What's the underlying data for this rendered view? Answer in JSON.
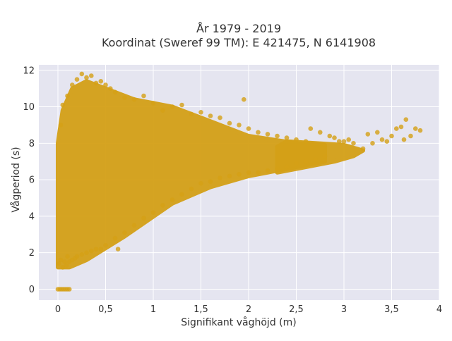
{
  "chart_data": {
    "type": "scatter",
    "title": "År 1979 - 2019",
    "subtitle": "Koordinat (Sweref 99 TM): E 421475, N 6141908",
    "xlabel": "Signifikant våghöjd (m)",
    "ylabel": "Vågperiod (s)",
    "xlim": [
      -0.2,
      4
    ],
    "ylim": [
      -0.6,
      12.3
    ],
    "x_ticks": [
      0,
      0.5,
      1,
      1.5,
      2,
      2.5,
      3,
      3.5,
      4
    ],
    "x_tick_labels": [
      "0",
      "0,5",
      "1",
      "1,5",
      "2",
      "2,5",
      "3",
      "3,5",
      "4"
    ],
    "y_ticks": [
      0,
      2,
      4,
      6,
      8,
      10,
      12
    ],
    "y_tick_labels": [
      "0",
      "2",
      "4",
      "6",
      "8",
      "10",
      "12"
    ],
    "grid": true,
    "marker_color": "#D4A017",
    "plot_background": "#E5E5F0",
    "series": [
      {
        "points": [
          [
            0.0,
            0.0
          ],
          [
            0.02,
            0.0
          ],
          [
            0.04,
            0.0
          ],
          [
            0.06,
            0.0
          ],
          [
            0.08,
            0.0
          ],
          [
            0.1,
            0.0
          ],
          [
            0.12,
            0.0
          ],
          [
            0.01,
            1.4
          ],
          [
            0.03,
            1.6
          ],
          [
            0.05,
            1.2
          ],
          [
            0.07,
            1.5
          ],
          [
            0.09,
            1.3
          ],
          [
            0.1,
            1.8
          ],
          [
            0.12,
            1.5
          ],
          [
            0.15,
            1.6
          ],
          [
            0.18,
            1.7
          ],
          [
            0.2,
            1.8
          ],
          [
            0.25,
            1.9
          ],
          [
            0.3,
            2.0
          ],
          [
            0.35,
            2.1
          ],
          [
            0.4,
            2.2
          ],
          [
            0.45,
            2.2
          ],
          [
            0.5,
            2.4
          ],
          [
            0.6,
            2.8
          ],
          [
            0.63,
            2.2
          ],
          [
            0.7,
            3.1
          ],
          [
            0.8,
            3.5
          ],
          [
            0.9,
            3.9
          ],
          [
            1.0,
            4.2
          ],
          [
            1.1,
            4.6
          ],
          [
            1.2,
            4.9
          ],
          [
            1.3,
            5.2
          ],
          [
            1.4,
            5.5
          ],
          [
            1.5,
            5.8
          ],
          [
            1.6,
            5.9
          ],
          [
            1.7,
            6.1
          ],
          [
            1.8,
            6.2
          ],
          [
            1.9,
            6.3
          ],
          [
            2.0,
            6.4
          ],
          [
            2.1,
            6.4
          ],
          [
            2.2,
            6.5
          ],
          [
            2.3,
            6.6
          ],
          [
            2.4,
            6.7
          ],
          [
            2.5,
            6.9
          ],
          [
            2.6,
            7.0
          ],
          [
            2.7,
            7.1
          ],
          [
            2.8,
            7.3
          ],
          [
            0.03,
            9.0
          ],
          [
            0.05,
            10.1
          ],
          [
            0.1,
            10.6
          ],
          [
            0.15,
            11.2
          ],
          [
            0.2,
            11.5
          ],
          [
            0.25,
            11.8
          ],
          [
            0.3,
            11.6
          ],
          [
            0.35,
            11.7
          ],
          [
            0.4,
            11.3
          ],
          [
            0.45,
            11.4
          ],
          [
            0.5,
            11.2
          ],
          [
            0.55,
            11.0
          ],
          [
            0.6,
            10.8
          ],
          [
            0.7,
            10.5
          ],
          [
            0.8,
            10.4
          ],
          [
            0.9,
            10.6
          ],
          [
            1.0,
            10.2
          ],
          [
            1.1,
            9.8
          ],
          [
            1.2,
            10.0
          ],
          [
            1.3,
            10.1
          ],
          [
            1.4,
            9.6
          ],
          [
            1.5,
            9.7
          ],
          [
            1.6,
            9.5
          ],
          [
            1.7,
            9.4
          ],
          [
            1.8,
            9.1
          ],
          [
            1.9,
            9.0
          ],
          [
            1.95,
            10.4
          ],
          [
            2.0,
            8.8
          ],
          [
            2.1,
            8.6
          ],
          [
            2.2,
            8.5
          ],
          [
            2.3,
            8.4
          ],
          [
            2.4,
            8.3
          ],
          [
            2.5,
            8.2
          ],
          [
            2.6,
            8.1
          ],
          [
            2.65,
            8.8
          ],
          [
            2.75,
            8.6
          ],
          [
            2.85,
            8.4
          ],
          [
            2.9,
            8.3
          ],
          [
            2.95,
            8.1
          ],
          [
            3.0,
            8.1
          ],
          [
            3.05,
            8.2
          ],
          [
            3.1,
            8.0
          ],
          [
            3.2,
            7.7
          ],
          [
            3.25,
            8.5
          ],
          [
            3.3,
            8.0
          ],
          [
            3.35,
            8.6
          ],
          [
            3.4,
            8.2
          ],
          [
            3.45,
            8.1
          ],
          [
            3.5,
            8.4
          ],
          [
            3.55,
            8.8
          ],
          [
            3.6,
            8.9
          ],
          [
            3.63,
            8.2
          ],
          [
            3.65,
            9.3
          ],
          [
            3.7,
            8.4
          ],
          [
            3.75,
            8.8
          ],
          [
            3.8,
            8.7
          ]
        ]
      }
    ],
    "dense_regions": [
      {
        "points": [
          [
            0.0,
            1.2
          ],
          [
            0.12,
            1.2
          ],
          [
            0.3,
            1.6
          ],
          [
            0.7,
            2.9
          ],
          [
            1.2,
            4.7
          ],
          [
            1.6,
            5.6
          ],
          [
            2.0,
            6.2
          ],
          [
            2.5,
            6.7
          ],
          [
            2.8,
            7.0
          ],
          [
            2.8,
            7.9
          ],
          [
            2.5,
            8.0
          ],
          [
            2.0,
            8.4
          ],
          [
            1.5,
            9.4
          ],
          [
            1.2,
            10.0
          ],
          [
            0.8,
            10.4
          ],
          [
            0.5,
            11.0
          ],
          [
            0.3,
            11.4
          ],
          [
            0.15,
            11.0
          ],
          [
            0.05,
            9.8
          ],
          [
            0.0,
            8.0
          ]
        ]
      },
      {
        "points": [
          [
            2.3,
            6.4
          ],
          [
            2.6,
            6.7
          ],
          [
            2.9,
            7.0
          ],
          [
            3.1,
            7.3
          ],
          [
            3.2,
            7.6
          ],
          [
            3.0,
            7.9
          ],
          [
            2.7,
            8.0
          ],
          [
            2.4,
            8.1
          ],
          [
            2.3,
            7.8
          ]
        ]
      }
    ]
  }
}
